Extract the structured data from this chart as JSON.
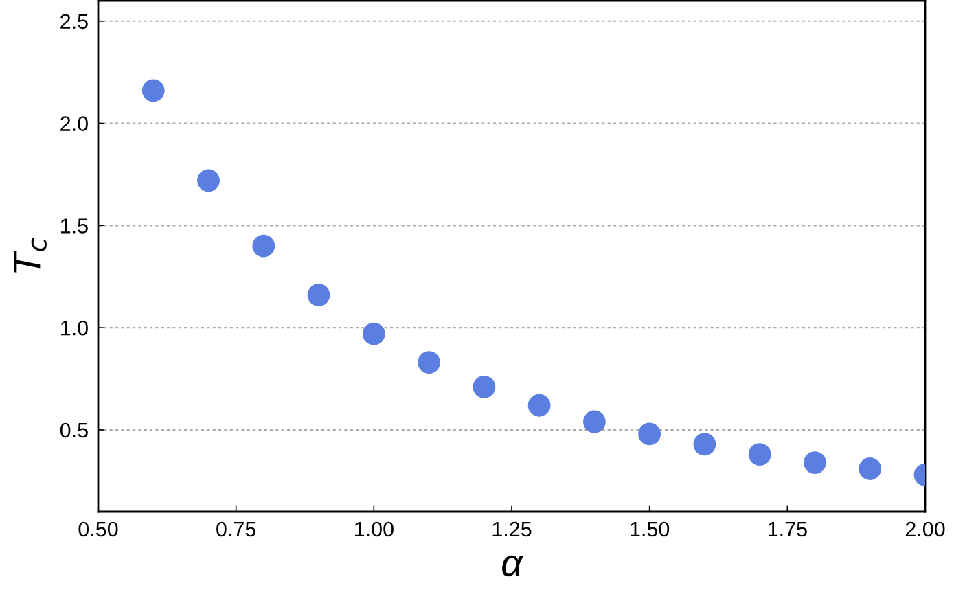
{
  "chart_data": {
    "type": "scatter",
    "xlabel": "α",
    "ylabel": "T$_{c}$",
    "x": [
      0.6,
      0.7,
      0.8,
      0.9,
      1.0,
      1.1,
      1.2,
      1.3,
      1.4,
      1.5,
      1.6,
      1.7,
      1.8,
      1.9,
      2.0
    ],
    "series": [
      {
        "color": "#5b7fe0",
        "values": [
          2.16,
          1.72,
          1.4,
          1.16,
          0.97,
          0.83,
          0.71,
          0.62,
          0.54,
          0.48,
          0.43,
          0.38,
          0.34,
          0.31,
          0.28
        ]
      }
    ],
    "xlim": [
      0.5,
      2.0
    ],
    "ylim": [
      0.1,
      2.6
    ],
    "xticks": [
      {
        "value": 0.5,
        "label": "0.50"
      },
      {
        "value": 0.75,
        "label": "0.75"
      },
      {
        "value": 1.0,
        "label": "1.00"
      },
      {
        "value": 1.25,
        "label": "1.25"
      },
      {
        "value": 1.5,
        "label": "1.50"
      },
      {
        "value": 1.75,
        "label": "1.75"
      },
      {
        "value": 2.0,
        "label": "2.00"
      }
    ],
    "yticks": [
      0.5,
      {
        "value": 1,
        "label": "1.0"
      },
      1.5,
      {
        "value": 2,
        "label": "2.0"
      },
      2.5
    ],
    "grid": "y",
    "marker": "circle"
  }
}
